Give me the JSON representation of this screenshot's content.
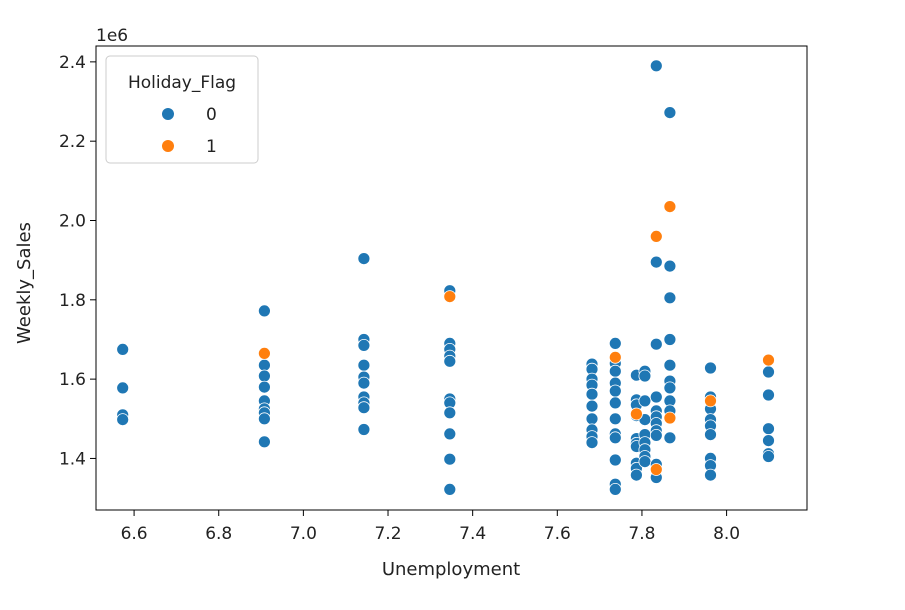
{
  "chart_data": {
    "type": "scatter",
    "xlabel": "Unemployment",
    "ylabel": "Weekly_Sales",
    "offset_text": "1e6",
    "xlim": [
      6.51,
      8.19
    ],
    "ylim": [
      1.27,
      2.44
    ],
    "x_ticks": [
      6.6,
      6.8,
      7.0,
      7.2,
      7.4,
      7.6,
      7.8,
      8.0
    ],
    "x_tick_labels": [
      "6.6",
      "6.8",
      "7.0",
      "7.2",
      "7.4",
      "7.6",
      "7.8",
      "8.0"
    ],
    "y_ticks": [
      1.4,
      1.6,
      1.8,
      2.0,
      2.2,
      2.4
    ],
    "y_tick_labels": [
      "1.4",
      "1.6",
      "1.8",
      "2.0",
      "2.2",
      "2.4"
    ],
    "grid": false,
    "legend": {
      "title": "Holiday_Flag",
      "placement": "top-left",
      "entries": [
        {
          "label": "0",
          "color": "#1f77b4"
        },
        {
          "label": "1",
          "color": "#ff7f0e"
        }
      ]
    },
    "series": [
      {
        "name": "0",
        "color": "#1f77b4",
        "points": [
          [
            6.573,
            1.675
          ],
          [
            6.573,
            1.578
          ],
          [
            6.573,
            1.51
          ],
          [
            6.573,
            1.498
          ],
          [
            6.908,
            1.772
          ],
          [
            6.908,
            1.635
          ],
          [
            6.908,
            1.608
          ],
          [
            6.908,
            1.58
          ],
          [
            6.908,
            1.545
          ],
          [
            6.908,
            1.525
          ],
          [
            6.908,
            1.515
          ],
          [
            6.908,
            1.5
          ],
          [
            6.908,
            1.442
          ],
          [
            7.143,
            1.904
          ],
          [
            7.143,
            1.7
          ],
          [
            7.143,
            1.685
          ],
          [
            7.143,
            1.635
          ],
          [
            7.143,
            1.605
          ],
          [
            7.143,
            1.59
          ],
          [
            7.143,
            1.555
          ],
          [
            7.143,
            1.54
          ],
          [
            7.143,
            1.528
          ],
          [
            7.143,
            1.473
          ],
          [
            7.346,
            1.823
          ],
          [
            7.346,
            1.69
          ],
          [
            7.346,
            1.675
          ],
          [
            7.346,
            1.658
          ],
          [
            7.346,
            1.645
          ],
          [
            7.346,
            1.55
          ],
          [
            7.346,
            1.54
          ],
          [
            7.346,
            1.515
          ],
          [
            7.346,
            1.462
          ],
          [
            7.346,
            1.398
          ],
          [
            7.346,
            1.322
          ],
          [
            7.682,
            1.638
          ],
          [
            7.682,
            1.625
          ],
          [
            7.682,
            1.6
          ],
          [
            7.682,
            1.585
          ],
          [
            7.682,
            1.562
          ],
          [
            7.682,
            1.532
          ],
          [
            7.682,
            1.5
          ],
          [
            7.682,
            1.472
          ],
          [
            7.682,
            1.455
          ],
          [
            7.682,
            1.44
          ],
          [
            7.737,
            1.69
          ],
          [
            7.737,
            1.64
          ],
          [
            7.737,
            1.62
          ],
          [
            7.737,
            1.59
          ],
          [
            7.737,
            1.57
          ],
          [
            7.737,
            1.54
          ],
          [
            7.737,
            1.5
          ],
          [
            7.737,
            1.462
          ],
          [
            7.737,
            1.452
          ],
          [
            7.737,
            1.396
          ],
          [
            7.737,
            1.335
          ],
          [
            7.737,
            1.322
          ],
          [
            7.787,
            1.61
          ],
          [
            7.787,
            1.548
          ],
          [
            7.787,
            1.535
          ],
          [
            7.787,
            1.508
          ],
          [
            7.787,
            1.45
          ],
          [
            7.787,
            1.438
          ],
          [
            7.787,
            1.43
          ],
          [
            7.787,
            1.388
          ],
          [
            7.787,
            1.375
          ],
          [
            7.787,
            1.358
          ],
          [
            7.807,
            1.62
          ],
          [
            7.807,
            1.608
          ],
          [
            7.807,
            1.545
          ],
          [
            7.807,
            1.498
          ],
          [
            7.807,
            1.46
          ],
          [
            7.807,
            1.44
          ],
          [
            7.807,
            1.422
          ],
          [
            7.807,
            1.405
          ],
          [
            7.807,
            1.392
          ],
          [
            7.834,
            2.39
          ],
          [
            7.834,
            1.895
          ],
          [
            7.834,
            1.688
          ],
          [
            7.834,
            1.555
          ],
          [
            7.834,
            1.52
          ],
          [
            7.834,
            1.505
          ],
          [
            7.834,
            1.488
          ],
          [
            7.834,
            1.47
          ],
          [
            7.834,
            1.458
          ],
          [
            7.834,
            1.385
          ],
          [
            7.834,
            1.352
          ],
          [
            7.866,
            2.272
          ],
          [
            7.866,
            1.885
          ],
          [
            7.866,
            1.805
          ],
          [
            7.866,
            1.7
          ],
          [
            7.866,
            1.635
          ],
          [
            7.866,
            1.595
          ],
          [
            7.866,
            1.578
          ],
          [
            7.866,
            1.545
          ],
          [
            7.866,
            1.52
          ],
          [
            7.866,
            1.452
          ],
          [
            7.962,
            1.628
          ],
          [
            7.962,
            1.555
          ],
          [
            7.962,
            1.525
          ],
          [
            7.962,
            1.498
          ],
          [
            7.962,
            1.482
          ],
          [
            7.962,
            1.46
          ],
          [
            7.962,
            1.4
          ],
          [
            7.962,
            1.382
          ],
          [
            7.962,
            1.358
          ],
          [
            8.099,
            1.618
          ],
          [
            8.099,
            1.56
          ],
          [
            8.099,
            1.475
          ],
          [
            8.099,
            1.445
          ],
          [
            8.099,
            1.412
          ],
          [
            8.099,
            1.405
          ]
        ]
      },
      {
        "name": "1",
        "color": "#ff7f0e",
        "points": [
          [
            6.908,
            1.665
          ],
          [
            7.346,
            1.808
          ],
          [
            7.737,
            1.655
          ],
          [
            7.787,
            1.512
          ],
          [
            7.834,
            1.96
          ],
          [
            7.834,
            1.372
          ],
          [
            7.866,
            2.035
          ],
          [
            7.866,
            1.502
          ],
          [
            7.962,
            1.545
          ],
          [
            8.099,
            1.648
          ]
        ]
      }
    ]
  }
}
